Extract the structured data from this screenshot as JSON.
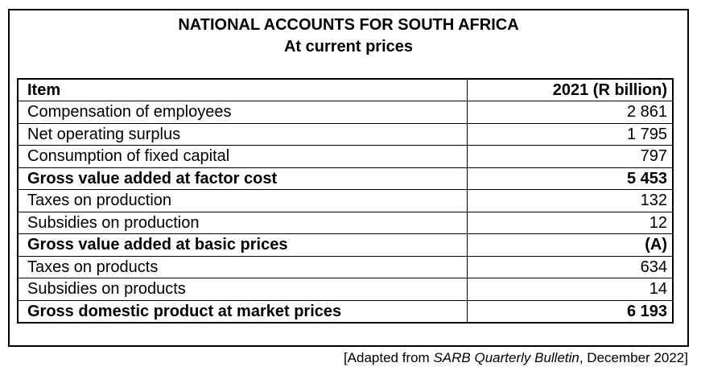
{
  "title": {
    "line1": "NATIONAL ACCOUNTS FOR SOUTH AFRICA",
    "line2": "At current prices"
  },
  "table": {
    "header": {
      "item": "Item",
      "value": "2021 (R billion)"
    },
    "rows": [
      {
        "item": "Compensation of employees",
        "value": "2 861"
      },
      {
        "item": "Net operating surplus",
        "value": "1 795"
      },
      {
        "item": "Consumption of fixed capital",
        "value": "797"
      },
      {
        "item": "Gross value added at factor cost",
        "value": "5 453"
      },
      {
        "item": "Taxes on production",
        "value": "132"
      },
      {
        "item": "Subsidies on production",
        "value": "12"
      },
      {
        "item": "Gross value added at basic prices",
        "value": "(A)"
      },
      {
        "item": "Taxes on products",
        "value": "634"
      },
      {
        "item": "Subsidies on products",
        "value": "14"
      },
      {
        "item": "Gross domestic product at market prices",
        "value": "6 193"
      }
    ]
  },
  "source": {
    "prefix": "[Adapted from ",
    "publication": "SARB Quarterly Bulletin",
    "suffix": ", December 2022]"
  }
}
